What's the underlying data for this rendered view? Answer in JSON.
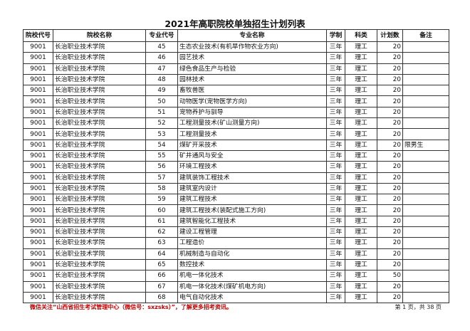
{
  "title": "2021年高职院校单独招生计划列表",
  "headers": [
    "院校代号",
    "院校名称",
    "专业代号",
    "专业名称",
    "学制",
    "科类",
    "计划数",
    "备注"
  ],
  "rows": [
    [
      "9001",
      "长治职业技术学院",
      "45",
      "生态农业技术(有机旱作物农业方向)",
      "三年",
      "理工",
      "20",
      ""
    ],
    [
      "9001",
      "长治职业技术学院",
      "46",
      "园艺技术",
      "三年",
      "理工",
      "20",
      ""
    ],
    [
      "9001",
      "长治职业技术学院",
      "47",
      "绿色食品生产与检验",
      "三年",
      "理工",
      "20",
      ""
    ],
    [
      "9001",
      "长治职业技术学院",
      "48",
      "园林技术",
      "三年",
      "理工",
      "20",
      ""
    ],
    [
      "9001",
      "长治职业技术学院",
      "49",
      "畜牧兽医",
      "三年",
      "理工",
      "20",
      ""
    ],
    [
      "9001",
      "长治职业技术学院",
      "50",
      "动物医学(宠物医学方向)",
      "三年",
      "理工",
      "20",
      ""
    ],
    [
      "9001",
      "长治职业技术学院",
      "51",
      "宠物养护与驯导",
      "三年",
      "理工",
      "20",
      ""
    ],
    [
      "9001",
      "长治职业技术学院",
      "52",
      "工程测量技术(矿山测量方向)",
      "三年",
      "理工",
      "20",
      ""
    ],
    [
      "9001",
      "长治职业技术学院",
      "53",
      "工程测量技术",
      "三年",
      "理工",
      "20",
      ""
    ],
    [
      "9001",
      "长治职业技术学院",
      "54",
      "煤矿开采技术",
      "三年",
      "理工",
      "20",
      "限男生"
    ],
    [
      "9001",
      "长治职业技术学院",
      "55",
      "矿井通风与安全",
      "三年",
      "理工",
      "20",
      ""
    ],
    [
      "9001",
      "长治职业技术学院",
      "56",
      "环境工程技术",
      "三年",
      "理工",
      "20",
      ""
    ],
    [
      "9001",
      "长治职业技术学院",
      "57",
      "建筑装饰工程技术",
      "三年",
      "理工",
      "20",
      ""
    ],
    [
      "9001",
      "长治职业技术学院",
      "58",
      "建筑室内设计",
      "三年",
      "理工",
      "20",
      ""
    ],
    [
      "9001",
      "长治职业技术学院",
      "59",
      "建筑工程技术",
      "三年",
      "理工",
      "20",
      ""
    ],
    [
      "9001",
      "长治职业技术学院",
      "60",
      "建筑工程技术(装配式施工方向)",
      "三年",
      "理工",
      "20",
      ""
    ],
    [
      "9001",
      "长治职业技术学院",
      "61",
      "建筑智能化工程技术",
      "三年",
      "理工",
      "20",
      ""
    ],
    [
      "9001",
      "长治职业技术学院",
      "62",
      "建设工程管理",
      "三年",
      "理工",
      "20",
      ""
    ],
    [
      "9001",
      "长治职业技术学院",
      "63",
      "工程造价",
      "三年",
      "理工",
      "20",
      ""
    ],
    [
      "9001",
      "长治职业技术学院",
      "64",
      "机械制造与自动化",
      "三年",
      "理工",
      "20",
      ""
    ],
    [
      "9001",
      "长治职业技术学院",
      "65",
      "数控技术",
      "三年",
      "理工",
      "20",
      ""
    ],
    [
      "9001",
      "长治职业技术学院",
      "66",
      "机电一体化技术",
      "三年",
      "理工",
      "50",
      ""
    ],
    [
      "9001",
      "长治职业技术学院",
      "67",
      "机电一体化技术(煤矿机电方向)",
      "三年",
      "理工",
      "20",
      ""
    ],
    [
      "9001",
      "长治职业技术学院",
      "68",
      "电气自动化技术",
      "三年",
      "理工",
      "20",
      ""
    ]
  ],
  "footer": {
    "notice": "微信关注“山西省招生考试管理中心（微信号：sxzsks）”，了解更多招考资讯。",
    "page": "第 1 页，共 38 页"
  },
  "colors": {
    "notice": "#c00000",
    "border": "#333333"
  }
}
